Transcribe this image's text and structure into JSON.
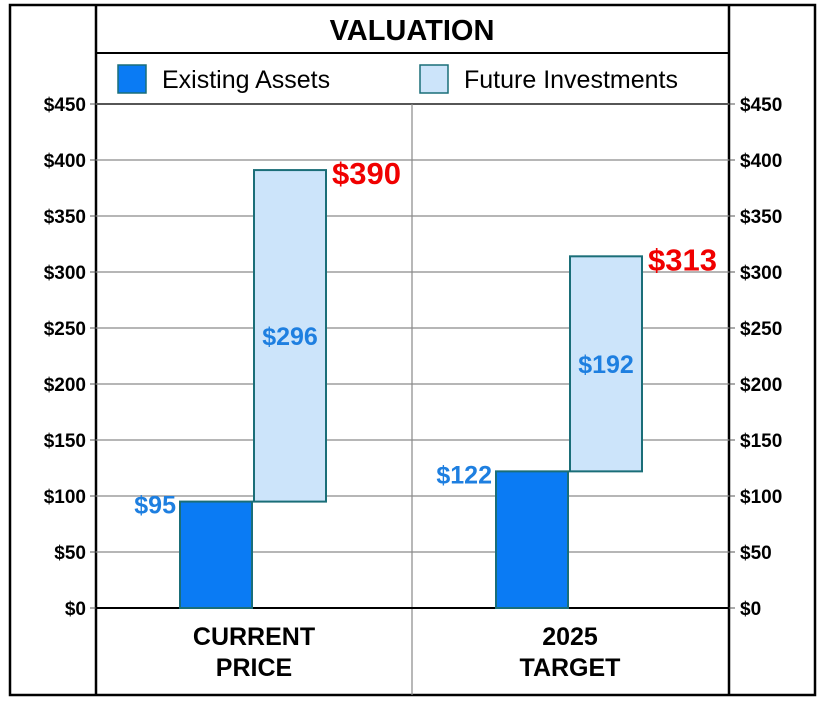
{
  "chart_data": {
    "type": "bar",
    "title": "VALUATION",
    "categories": [
      "CURRENT PRICE",
      "2025 TARGET"
    ],
    "category_lines": [
      [
        "CURRENT",
        "PRICE"
      ],
      [
        "2025",
        "TARGET"
      ]
    ],
    "series": [
      {
        "name": "Existing Assets",
        "base": [
          0,
          0
        ],
        "values": [
          95,
          122
        ],
        "labels": [
          "$95",
          "$122"
        ],
        "color": "#0a7bf4"
      },
      {
        "name": "Future Investments",
        "base": [
          95,
          122
        ],
        "values": [
          296,
          192
        ],
        "labels": [
          "$296",
          "$192"
        ],
        "color": "#cce4fa"
      }
    ],
    "totals": [
      390,
      313
    ],
    "total_labels": [
      "$390",
      "$313"
    ],
    "ylim": [
      0,
      450
    ],
    "yticks": [
      0,
      50,
      100,
      150,
      200,
      250,
      300,
      350,
      400,
      450
    ],
    "ytick_labels": [
      "$0",
      "$50",
      "$100",
      "$150",
      "$200",
      "$250",
      "$300",
      "$350",
      "$400",
      "$450"
    ],
    "xlabel": "",
    "ylabel": "",
    "grid": true,
    "legend_position": "top",
    "colors": {
      "total_label": "#f00000",
      "value_label": "#1e7fe0",
      "bar_border": "#1a6e78"
    }
  }
}
